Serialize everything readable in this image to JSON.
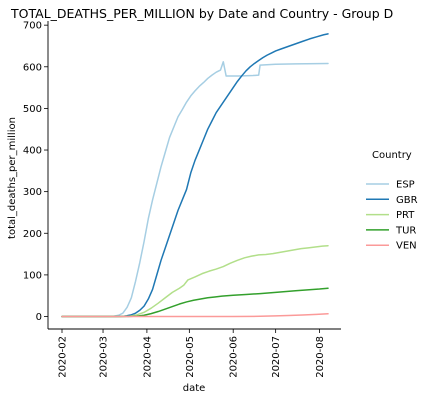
{
  "chart_data": {
    "type": "line",
    "title": "TOTAL_DEATHS_PER_MILLION by Date and Country - Group D",
    "xlabel": "date",
    "ylabel": "total_deaths_per_million",
    "x_ticks": [
      "2020-02",
      "2020-03",
      "2020-04",
      "2020-05",
      "2020-06",
      "2020-07",
      "2020-08"
    ],
    "x_range": [
      "2020-02-01",
      "2020-08-07"
    ],
    "y_ticks": [
      0,
      100,
      200,
      300,
      400,
      500,
      600,
      700
    ],
    "ylim": [
      -30,
      710
    ],
    "grid": false,
    "legend": {
      "title": "Country",
      "position": "right"
    },
    "series": [
      {
        "name": "ESP",
        "color": "#a6cee3",
        "points": [
          [
            "2020-02-01",
            0
          ],
          [
            "2020-03-03",
            0
          ],
          [
            "2020-03-08",
            0.5
          ],
          [
            "2020-03-12",
            3
          ],
          [
            "2020-03-15",
            8
          ],
          [
            "2020-03-18",
            22
          ],
          [
            "2020-03-21",
            45
          ],
          [
            "2020-03-24",
            85
          ],
          [
            "2020-03-27",
            130
          ],
          [
            "2020-03-30",
            180
          ],
          [
            "2020-04-02",
            235
          ],
          [
            "2020-04-05",
            280
          ],
          [
            "2020-04-08",
            320
          ],
          [
            "2020-04-11",
            360
          ],
          [
            "2020-04-14",
            395
          ],
          [
            "2020-04-17",
            430
          ],
          [
            "2020-04-20",
            455
          ],
          [
            "2020-04-23",
            480
          ],
          [
            "2020-04-26",
            497
          ],
          [
            "2020-04-29",
            515
          ],
          [
            "2020-05-02",
            530
          ],
          [
            "2020-05-05",
            542
          ],
          [
            "2020-05-08",
            553
          ],
          [
            "2020-05-11",
            562
          ],
          [
            "2020-05-14",
            572
          ],
          [
            "2020-05-17",
            580
          ],
          [
            "2020-05-20",
            587
          ],
          [
            "2020-05-23",
            592
          ],
          [
            "2020-05-25",
            612
          ],
          [
            "2020-05-26",
            595
          ],
          [
            "2020-05-27",
            578
          ],
          [
            "2020-06-05",
            578
          ],
          [
            "2020-06-15",
            579
          ],
          [
            "2020-06-19",
            580
          ],
          [
            "2020-06-20",
            604
          ],
          [
            "2020-07-01",
            606
          ],
          [
            "2020-07-15",
            607
          ],
          [
            "2020-08-07",
            608
          ]
        ]
      },
      {
        "name": "GBR",
        "color": "#1f78b4",
        "points": [
          [
            "2020-02-01",
            0
          ],
          [
            "2020-03-10",
            0
          ],
          [
            "2020-03-15",
            0.5
          ],
          [
            "2020-03-18",
            2
          ],
          [
            "2020-03-21",
            4
          ],
          [
            "2020-03-24",
            8
          ],
          [
            "2020-03-27",
            15
          ],
          [
            "2020-03-30",
            25
          ],
          [
            "2020-04-02",
            42
          ],
          [
            "2020-04-05",
            65
          ],
          [
            "2020-04-08",
            100
          ],
          [
            "2020-04-11",
            135
          ],
          [
            "2020-04-14",
            165
          ],
          [
            "2020-04-17",
            195
          ],
          [
            "2020-04-20",
            225
          ],
          [
            "2020-04-23",
            255
          ],
          [
            "2020-04-26",
            280
          ],
          [
            "2020-04-29",
            305
          ],
          [
            "2020-05-02",
            345
          ],
          [
            "2020-05-05",
            375
          ],
          [
            "2020-05-08",
            400
          ],
          [
            "2020-05-11",
            425
          ],
          [
            "2020-05-14",
            450
          ],
          [
            "2020-05-17",
            470
          ],
          [
            "2020-05-20",
            490
          ],
          [
            "2020-05-23",
            505
          ],
          [
            "2020-05-26",
            520
          ],
          [
            "2020-05-29",
            535
          ],
          [
            "2020-06-01",
            550
          ],
          [
            "2020-06-04",
            565
          ],
          [
            "2020-06-07",
            578
          ],
          [
            "2020-06-10",
            590
          ],
          [
            "2020-06-13",
            600
          ],
          [
            "2020-06-16",
            608
          ],
          [
            "2020-06-19",
            615
          ],
          [
            "2020-06-22",
            622
          ],
          [
            "2020-06-25",
            628
          ],
          [
            "2020-06-28",
            633
          ],
          [
            "2020-07-01",
            638
          ],
          [
            "2020-07-05",
            643
          ],
          [
            "2020-07-10",
            649
          ],
          [
            "2020-07-15",
            655
          ],
          [
            "2020-07-20",
            661
          ],
          [
            "2020-07-25",
            667
          ],
          [
            "2020-07-30",
            672
          ],
          [
            "2020-08-04",
            677
          ],
          [
            "2020-08-07",
            679
          ]
        ]
      },
      {
        "name": "PRT",
        "color": "#b2df8a",
        "points": [
          [
            "2020-02-01",
            0
          ],
          [
            "2020-03-10",
            0
          ],
          [
            "2020-03-15",
            0.2
          ],
          [
            "2020-03-20",
            1
          ],
          [
            "2020-03-25",
            4
          ],
          [
            "2020-03-30",
            10
          ],
          [
            "2020-04-04",
            20
          ],
          [
            "2020-04-09",
            32
          ],
          [
            "2020-04-14",
            45
          ],
          [
            "2020-04-19",
            58
          ],
          [
            "2020-04-24",
            68
          ],
          [
            "2020-04-27",
            75
          ],
          [
            "2020-04-30",
            88
          ],
          [
            "2020-05-05",
            95
          ],
          [
            "2020-05-10",
            103
          ],
          [
            "2020-05-15",
            109
          ],
          [
            "2020-05-20",
            114
          ],
          [
            "2020-05-25",
            120
          ],
          [
            "2020-05-30",
            128
          ],
          [
            "2020-06-04",
            135
          ],
          [
            "2020-06-09",
            141
          ],
          [
            "2020-06-14",
            145
          ],
          [
            "2020-06-19",
            148
          ],
          [
            "2020-06-24",
            149
          ],
          [
            "2020-06-29",
            151
          ],
          [
            "2020-07-04",
            154
          ],
          [
            "2020-07-09",
            157
          ],
          [
            "2020-07-14",
            160
          ],
          [
            "2020-07-19",
            163
          ],
          [
            "2020-07-24",
            165
          ],
          [
            "2020-07-29",
            167
          ],
          [
            "2020-08-03",
            169
          ],
          [
            "2020-08-07",
            170
          ]
        ]
      },
      {
        "name": "TUR",
        "color": "#33a02c",
        "points": [
          [
            "2020-02-01",
            0
          ],
          [
            "2020-03-15",
            0
          ],
          [
            "2020-03-20",
            0.3
          ],
          [
            "2020-03-25",
            1
          ],
          [
            "2020-03-30",
            3
          ],
          [
            "2020-04-04",
            7
          ],
          [
            "2020-04-09",
            12
          ],
          [
            "2020-04-14",
            18
          ],
          [
            "2020-04-19",
            24
          ],
          [
            "2020-04-24",
            30
          ],
          [
            "2020-04-29",
            35
          ],
          [
            "2020-05-04",
            39
          ],
          [
            "2020-05-09",
            42
          ],
          [
            "2020-05-14",
            45
          ],
          [
            "2020-05-19",
            47
          ],
          [
            "2020-05-24",
            49
          ],
          [
            "2020-06-01",
            51
          ],
          [
            "2020-06-10",
            53
          ],
          [
            "2020-06-20",
            55
          ],
          [
            "2020-07-01",
            58
          ],
          [
            "2020-07-15",
            62
          ],
          [
            "2020-08-01",
            66
          ],
          [
            "2020-08-07",
            68
          ]
        ]
      },
      {
        "name": "VEN",
        "color": "#fb9a99",
        "points": [
          [
            "2020-02-01",
            0
          ],
          [
            "2020-06-01",
            0
          ],
          [
            "2020-06-20",
            0.5
          ],
          [
            "2020-07-01",
            1.5
          ],
          [
            "2020-07-10",
            2.5
          ],
          [
            "2020-07-20",
            3.5
          ],
          [
            "2020-07-30",
            5
          ],
          [
            "2020-08-07",
            6.5
          ]
        ]
      }
    ]
  }
}
